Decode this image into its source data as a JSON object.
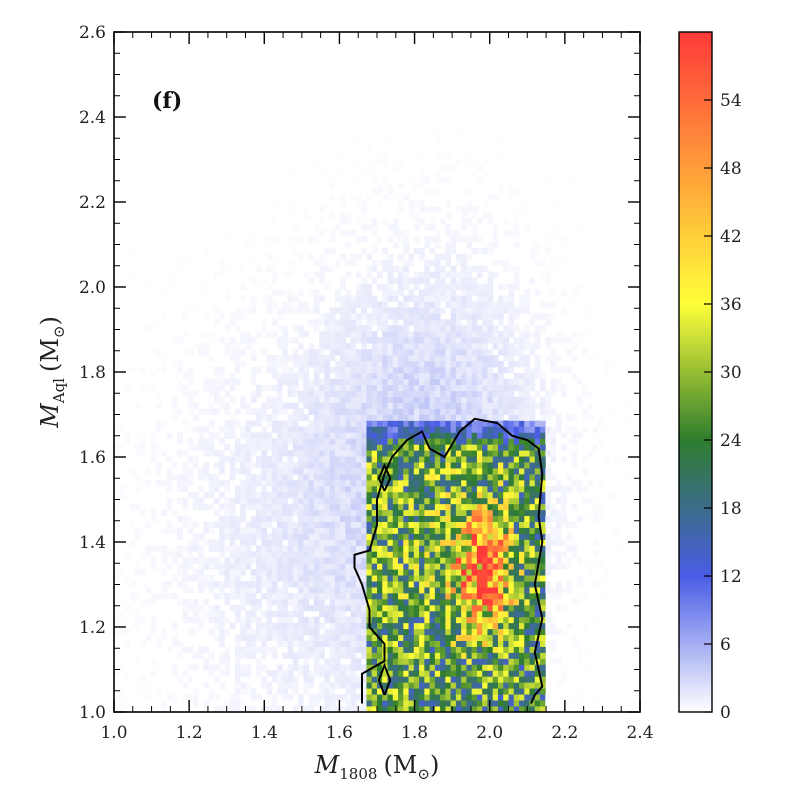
{
  "chart_data": {
    "type": "heatmap",
    "panel_label": "(f)",
    "xlabel": {
      "var": "M",
      "sub": "1808",
      "unit": "(M",
      "sun": "⊙",
      "close": ")"
    },
    "ylabel": {
      "var": "M",
      "sub": "Aql",
      "unit": "(M",
      "sun": "⊙",
      "close": ")"
    },
    "xlim": [
      1.0,
      2.4
    ],
    "ylim": [
      1.0,
      2.6
    ],
    "x_ticks": [
      "1.0",
      "1.2",
      "1.4",
      "1.6",
      "1.8",
      "2.0",
      "2.2",
      "2.4"
    ],
    "y_ticks": [
      "1.0",
      "1.2",
      "1.4",
      "1.6",
      "1.8",
      "2.0",
      "2.2",
      "2.4",
      "2.6"
    ],
    "colorbar": {
      "min": 0,
      "max": 60,
      "ticks": [
        "0",
        "6",
        "12",
        "18",
        "24",
        "30",
        "36",
        "42",
        "48",
        "54"
      ],
      "colormap": [
        "#ffffff",
        "#4a5ce6",
        "#2e7d2e",
        "#ffff3a",
        "#ff3a3a"
      ],
      "colormap_stops": [
        0,
        0.2,
        0.4,
        0.6,
        1.0
      ]
    },
    "bin_width": 0.014,
    "density_peak": {
      "x": 1.98,
      "y": 1.32,
      "value": 58
    },
    "contour_line_color": "#000000",
    "contours": [
      {
        "name": "main",
        "points": [
          [
            1.66,
            1.02
          ],
          [
            1.66,
            1.09
          ],
          [
            1.72,
            1.12
          ],
          [
            1.72,
            1.16
          ],
          [
            1.68,
            1.2
          ],
          [
            1.68,
            1.24
          ],
          [
            1.66,
            1.3
          ],
          [
            1.64,
            1.34
          ],
          [
            1.64,
            1.37
          ],
          [
            1.68,
            1.38
          ],
          [
            1.7,
            1.44
          ],
          [
            1.7,
            1.5
          ],
          [
            1.72,
            1.56
          ],
          [
            1.74,
            1.6
          ],
          [
            1.78,
            1.64
          ],
          [
            1.82,
            1.66
          ],
          [
            1.84,
            1.62
          ],
          [
            1.88,
            1.6
          ],
          [
            1.92,
            1.66
          ],
          [
            1.96,
            1.69
          ],
          [
            2.02,
            1.68
          ],
          [
            2.06,
            1.65
          ],
          [
            2.1,
            1.64
          ],
          [
            2.13,
            1.62
          ],
          [
            2.14,
            1.56
          ],
          [
            2.13,
            1.46
          ],
          [
            2.14,
            1.4
          ],
          [
            2.12,
            1.3
          ],
          [
            2.14,
            1.22
          ],
          [
            2.12,
            1.14
          ],
          [
            2.14,
            1.06
          ],
          [
            2.12,
            1.04
          ],
          [
            2.11,
            1.02
          ]
        ]
      },
      {
        "name": "island-upper",
        "points": [
          [
            1.72,
            1.52
          ],
          [
            1.735,
            1.55
          ],
          [
            1.72,
            1.58
          ],
          [
            1.705,
            1.55
          ],
          [
            1.72,
            1.52
          ]
        ]
      },
      {
        "name": "island-lower",
        "points": [
          [
            1.72,
            1.04
          ],
          [
            1.735,
            1.075
          ],
          [
            1.72,
            1.11
          ],
          [
            1.705,
            1.075
          ],
          [
            1.72,
            1.04
          ]
        ]
      }
    ]
  }
}
